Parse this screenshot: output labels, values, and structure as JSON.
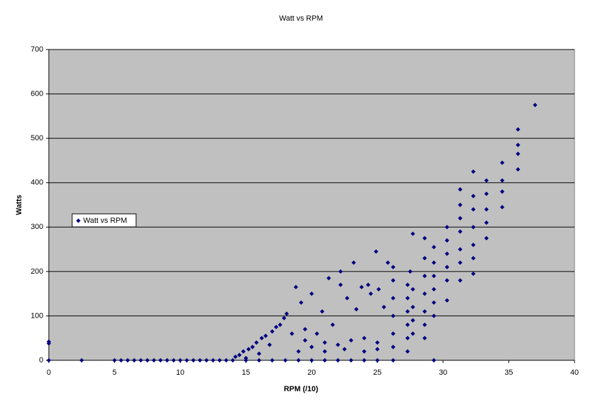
{
  "chart_data": {
    "type": "scatter",
    "title": "Watt vs RPM",
    "x_label": "RPM (/10)",
    "y_label": "Watts",
    "xlim": [
      0,
      40
    ],
    "xticks": [
      0,
      5,
      10,
      15,
      20,
      25,
      30,
      35,
      40
    ],
    "ylim": [
      0,
      700
    ],
    "yticks": [
      0,
      100,
      200,
      300,
      400,
      500,
      600,
      700
    ],
    "grid": true,
    "legend": "left",
    "series": [
      {
        "name": "Watt vs RPM",
        "color": "#000080",
        "x": [
          0,
          0,
          0,
          2.5,
          5,
          5.5,
          6,
          6.5,
          7,
          7.5,
          8,
          8.5,
          9,
          9.5,
          10,
          10.5,
          11,
          11.5,
          12,
          12.5,
          13,
          13.5,
          14,
          14.2,
          14.5,
          14.8,
          15,
          15.2,
          15.5,
          15.8,
          16,
          16.2,
          16.5,
          16.8,
          17,
          17.3,
          17.6,
          17.9,
          18.1,
          18.5,
          18.8,
          19.2,
          19.5,
          20,
          20.4,
          20.8,
          21.3,
          21.6,
          22.2,
          22.2,
          22.7,
          23.2,
          23.4,
          23.8,
          24.3,
          24.5,
          24.9,
          25.1,
          25.5,
          25.8,
          26.2,
          26.2,
          26.2,
          26.2,
          26.2,
          26.2,
          26.2,
          27.3,
          27.3,
          27.3,
          27.3,
          27.3,
          27.5,
          27.7,
          27.7,
          27.7,
          27.7,
          27.7,
          28.6,
          28.6,
          28.6,
          28.6,
          28.6,
          28.6,
          29.3,
          29.3,
          29.3,
          29.3,
          29.3,
          29.3,
          29.3,
          30.3,
          30.3,
          30.3,
          30.3,
          30.3,
          30.3,
          31.3,
          31.3,
          31.3,
          31.3,
          31.3,
          31.3,
          31.3,
          32.3,
          32.3,
          32.3,
          32.3,
          32.3,
          32.3,
          32.3,
          33.3,
          33.3,
          33.3,
          33.3,
          33.3,
          34.5,
          34.5,
          34.5,
          34.5,
          35.7,
          35.7,
          35.7,
          35.7,
          37.0,
          15,
          16,
          17,
          18,
          19,
          20,
          21,
          22,
          23,
          24,
          25,
          19,
          20,
          21,
          22,
          23,
          24,
          25,
          19.5,
          21,
          22.5,
          24,
          25,
          27.3,
          28.6
        ],
        "values": [
          0,
          38,
          42,
          0,
          0,
          0,
          0,
          0,
          0,
          0,
          0,
          0,
          0,
          0,
          0,
          0,
          0,
          0,
          0,
          0,
          0,
          0,
          0,
          8,
          12,
          20,
          5,
          25,
          30,
          40,
          15,
          50,
          55,
          35,
          65,
          75,
          80,
          95,
          105,
          60,
          165,
          130,
          70,
          150,
          60,
          110,
          185,
          80,
          200,
          170,
          140,
          220,
          115,
          165,
          170,
          150,
          245,
          160,
          120,
          220,
          210,
          180,
          140,
          100,
          60,
          30,
          0,
          170,
          140,
          110,
          80,
          50,
          200,
          285,
          160,
          120,
          90,
          60,
          275,
          230,
          190,
          150,
          110,
          80,
          255,
          220,
          190,
          160,
          130,
          100,
          0,
          300,
          270,
          240,
          210,
          180,
          135,
          385,
          350,
          320,
          290,
          250,
          220,
          180,
          425,
          370,
          340,
          300,
          260,
          230,
          195,
          405,
          375,
          340,
          310,
          275,
          445,
          405,
          380,
          345,
          520,
          485,
          465,
          430,
          575,
          0,
          0,
          0,
          0,
          0,
          0,
          0,
          0,
          0,
          0,
          0,
          20,
          30,
          40,
          35,
          45,
          50,
          40,
          45,
          20,
          25,
          20,
          25,
          20,
          50
        ]
      }
    ]
  }
}
